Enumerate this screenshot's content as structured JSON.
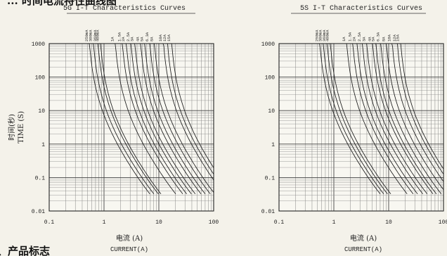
{
  "page": {
    "top_heading_fragment": "... 时间电流特性曲线图",
    "bottom_heading_fragment": "、产品标志"
  },
  "chart_data": [
    {
      "type": "line",
      "title": "5G I-T Characteristics Curves",
      "xlabel_cn": "电流 (A)",
      "xlabel_en": "CURRENT(A)",
      "ylabel_cn": "时间(秒)",
      "ylabel_en": "TIME (S)",
      "x_scale": "log",
      "y_scale": "log",
      "xlim": [
        0.1,
        100
      ],
      "ylim": [
        0.01,
        1000
      ],
      "x_ticks": [
        "0.1",
        "1",
        "10",
        "100"
      ],
      "y_ticks": [
        "1000",
        "100",
        "10",
        "1",
        "0.1",
        "0.01"
      ],
      "grid": true,
      "series": [
        {
          "name": "250mA",
          "knee": 0.49
        },
        {
          "name": "300mA",
          "knee": 0.58
        },
        {
          "name": "360mA",
          "knee": 0.7
        },
        {
          "name": "400mA",
          "knee": 0.78
        },
        {
          "name": "1A",
          "knee": 1.45
        },
        {
          "name": "1.5A",
          "knee": 1.95
        },
        {
          "name": "2A",
          "knee": 2.3
        },
        {
          "name": "2.5A",
          "knee": 2.8
        },
        {
          "name": "3A",
          "knee": 3.3
        },
        {
          "name": "4A",
          "knee": 4.2
        },
        {
          "name": "5A",
          "knee": 5.0
        },
        {
          "name": "6.3A",
          "knee": 6.2
        },
        {
          "name": "8A",
          "knee": 7.5
        },
        {
          "name": "10A",
          "knee": 11.0
        },
        {
          "name": "12A",
          "knee": 13.0
        },
        {
          "name": "15A",
          "knee": 15.5
        }
      ]
    },
    {
      "type": "line",
      "title": "5S I-T Characteristics Curves",
      "xlabel_cn": "电流 (A)",
      "xlabel_en": "CURRENT(A)",
      "x_scale": "log",
      "y_scale": "log",
      "xlim": [
        0.1,
        100
      ],
      "ylim": [
        0.01,
        1000
      ],
      "x_ticks": [
        "0.1",
        "1",
        "10",
        "100"
      ],
      "y_ticks": [
        "1000",
        "100",
        "10",
        "1",
        "0.1",
        "0.01"
      ],
      "grid": true,
      "series": [
        {
          "name": "250mA",
          "knee": 0.5
        },
        {
          "name": "300mA",
          "knee": 0.58
        },
        {
          "name": "360mA",
          "knee": 0.68
        },
        {
          "name": "400mA",
          "knee": 0.78
        },
        {
          "name": "1A",
          "knee": 1.55
        },
        {
          "name": "1.5A",
          "knee": 2.0
        },
        {
          "name": "2A",
          "knee": 2.4
        },
        {
          "name": "2.5A",
          "knee": 3.0
        },
        {
          "name": "3A",
          "knee": 3.6
        },
        {
          "name": "4A",
          "knee": 4.6
        },
        {
          "name": "5A",
          "knee": 5.3
        },
        {
          "name": "6.3A",
          "knee": 6.5
        },
        {
          "name": "8A",
          "knee": 8.2
        },
        {
          "name": "10A",
          "knee": 10.5
        },
        {
          "name": "12A",
          "knee": 13.0
        },
        {
          "name": "15A",
          "knee": 15.0
        }
      ]
    }
  ]
}
